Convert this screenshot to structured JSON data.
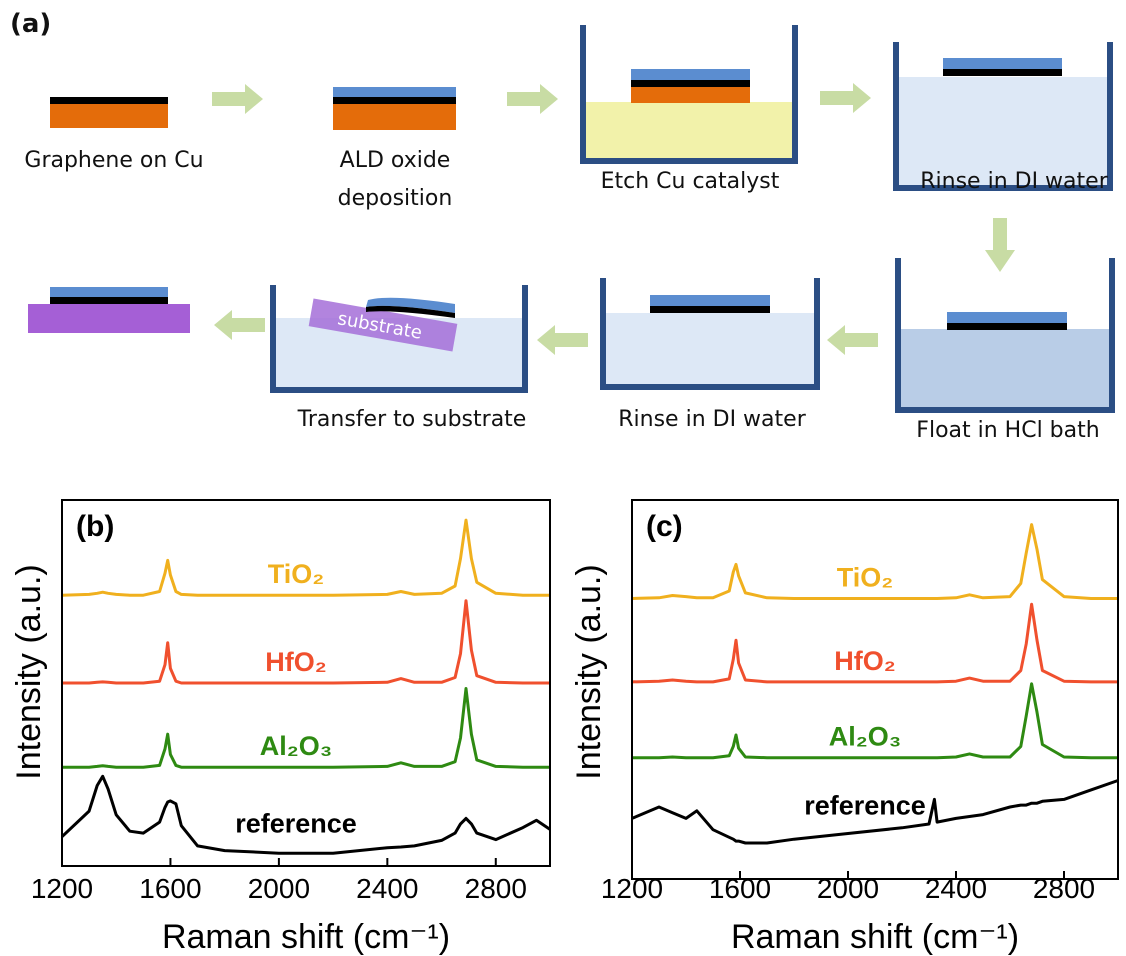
{
  "diagram": {
    "label": "(a)",
    "steps": [
      {
        "label": [
          "Graphene on Cu"
        ]
      },
      {
        "label": [
          "ALD oxide",
          "deposition"
        ]
      },
      {
        "label": [
          "Etch Cu catalyst"
        ]
      },
      {
        "label": [
          "Rinse in DI water"
        ]
      },
      {
        "label": [
          "Float in HCl bath"
        ]
      },
      {
        "label": [
          "Rinse in DI water"
        ]
      },
      {
        "label": [
          "Transfer to substrate"
        ]
      }
    ],
    "substrate_label": "substrate"
  },
  "chart_data": [
    {
      "type": "line",
      "title": "(b)",
      "xlabel": "Raman shift (cm⁻¹)",
      "ylabel": "Intensity (a.u.)",
      "x": [
        1200,
        1300,
        1330,
        1350,
        1370,
        1400,
        1450,
        1500,
        1560,
        1580,
        1590,
        1600,
        1620,
        1640,
        1700,
        1800,
        2000,
        2200,
        2400,
        2450,
        2500,
        2600,
        2650,
        2670,
        2690,
        2710,
        2730,
        2800,
        2900,
        2950,
        3000
      ],
      "series": [
        {
          "name": "TiO₂",
          "color": "#f0b01e",
          "values": [
            7.4,
            7.42,
            7.45,
            7.48,
            7.45,
            7.42,
            7.4,
            7.4,
            7.5,
            8.0,
            8.35,
            7.95,
            7.5,
            7.42,
            7.4,
            7.4,
            7.4,
            7.4,
            7.42,
            7.5,
            7.42,
            7.45,
            7.65,
            8.4,
            9.45,
            8.4,
            7.75,
            7.45,
            7.4,
            7.4,
            7.4
          ]
        },
        {
          "name": "HfO₂",
          "color": "#f0502e",
          "values": [
            5.0,
            5.0,
            5.02,
            5.03,
            5.02,
            5.0,
            5.0,
            5.0,
            5.05,
            5.5,
            6.1,
            5.4,
            5.05,
            5.0,
            5.0,
            5.0,
            5.0,
            5.0,
            5.02,
            5.12,
            5.02,
            5.02,
            5.15,
            5.8,
            7.25,
            5.9,
            5.2,
            5.02,
            5.0,
            5.0,
            5.0
          ]
        },
        {
          "name": "Al₂O₃",
          "color": "#2e8a12",
          "values": [
            2.7,
            2.7,
            2.72,
            2.74,
            2.72,
            2.7,
            2.7,
            2.7,
            2.75,
            3.2,
            3.6,
            3.05,
            2.75,
            2.7,
            2.7,
            2.7,
            2.7,
            2.7,
            2.72,
            2.82,
            2.72,
            2.72,
            2.85,
            3.5,
            4.85,
            3.6,
            2.9,
            2.72,
            2.7,
            2.7,
            2.7
          ]
        },
        {
          "name": "reference",
          "color": "#000000",
          "values": [
            0.8,
            1.5,
            2.2,
            2.45,
            2.1,
            1.4,
            0.95,
            0.9,
            1.2,
            1.6,
            1.75,
            1.78,
            1.7,
            1.1,
            0.55,
            0.42,
            0.35,
            0.35,
            0.5,
            0.52,
            0.55,
            0.7,
            0.9,
            1.15,
            1.3,
            1.15,
            0.9,
            0.72,
            1.05,
            1.25,
            1.0
          ]
        }
      ],
      "xlim": [
        1200,
        3000
      ],
      "xticks": [
        1200,
        1600,
        2000,
        2400,
        2800
      ],
      "ylim": [
        0,
        10
      ]
    },
    {
      "type": "line",
      "title": "(c)",
      "xlabel": "Raman shift (cm⁻¹)",
      "ylabel": "Intensity (a.u.)",
      "x": [
        1200,
        1300,
        1350,
        1400,
        1440,
        1500,
        1560,
        1575,
        1585,
        1595,
        1620,
        1700,
        1800,
        2000,
        2200,
        2300,
        2320,
        2330,
        2400,
        2450,
        2500,
        2600,
        2640,
        2660,
        2680,
        2700,
        2720,
        2800,
        2900,
        3000
      ],
      "series": [
        {
          "name": "TiO₂",
          "color": "#f0b01e",
          "values": [
            7.4,
            7.42,
            7.48,
            7.45,
            7.42,
            7.42,
            7.6,
            8.1,
            8.3,
            8.0,
            7.55,
            7.42,
            7.4,
            7.4,
            7.4,
            7.4,
            7.4,
            7.4,
            7.42,
            7.5,
            7.42,
            7.45,
            7.8,
            8.6,
            9.35,
            8.7,
            7.9,
            7.45,
            7.4,
            7.4
          ]
        },
        {
          "name": "HfO₂",
          "color": "#f0502e",
          "values": [
            5.2,
            5.22,
            5.25,
            5.22,
            5.2,
            5.2,
            5.28,
            5.8,
            6.3,
            5.7,
            5.25,
            5.2,
            5.2,
            5.2,
            5.2,
            5.2,
            5.2,
            5.2,
            5.22,
            5.3,
            5.22,
            5.22,
            5.5,
            6.2,
            7.25,
            6.3,
            5.5,
            5.22,
            5.2,
            5.2
          ]
        },
        {
          "name": "Al₂O₃",
          "color": "#2e8a12",
          "values": [
            3.2,
            3.2,
            3.22,
            3.2,
            3.2,
            3.2,
            3.25,
            3.5,
            3.8,
            3.45,
            3.22,
            3.2,
            3.2,
            3.2,
            3.2,
            3.2,
            3.2,
            3.2,
            3.22,
            3.3,
            3.22,
            3.22,
            3.5,
            4.3,
            5.15,
            4.4,
            3.55,
            3.22,
            3.2,
            3.2
          ]
        },
        {
          "name": "reference",
          "color": "#000000",
          "values": [
            1.6,
            1.9,
            1.75,
            1.6,
            1.8,
            1.3,
            1.1,
            1.05,
            1.0,
            1.0,
            0.95,
            0.95,
            1.05,
            1.2,
            1.35,
            1.45,
            2.1,
            1.5,
            1.6,
            1.65,
            1.7,
            1.9,
            1.95,
            1.95,
            2.0,
            2.0,
            2.05,
            2.1,
            2.35,
            2.6
          ]
        }
      ],
      "xlim": [
        1200,
        3000
      ],
      "xticks": [
        1200,
        1600,
        2000,
        2400,
        2800
      ],
      "ylim": [
        0,
        10
      ]
    }
  ]
}
